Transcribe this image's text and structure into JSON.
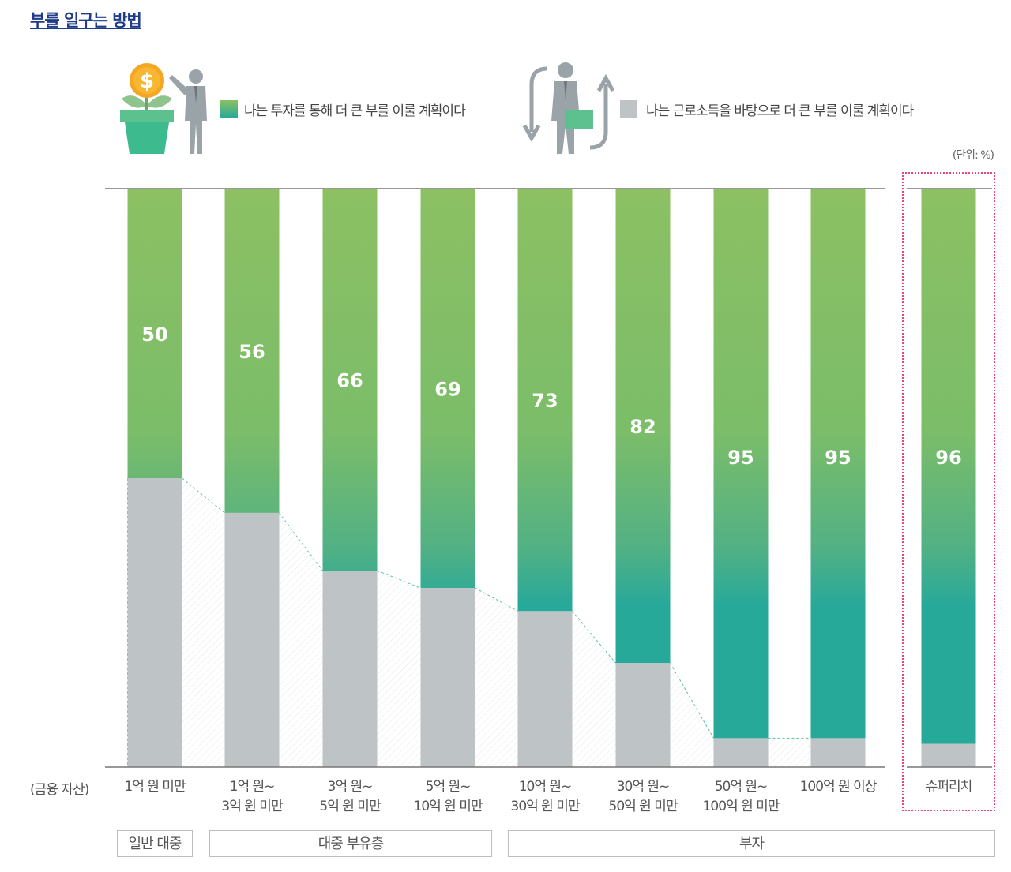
{
  "title": "부를 일구는 방법",
  "unit_label": "(단위: %)",
  "legend": {
    "investment": {
      "label": "나는 투자를 통해 더 큰 부를 이룰 계획이다",
      "icon": "plant-money-icon"
    },
    "labor": {
      "label": "나는 근로소득을 바탕으로 더 큰 부를 이룰 계획이다",
      "icon": "worker-briefcase-icon"
    }
  },
  "axis_caption": "(금융 자산)",
  "groups": [
    {
      "label": "일반 대중"
    },
    {
      "label": "대중 부유층"
    },
    {
      "label": "부자"
    }
  ],
  "colors": {
    "green_top": "#8cc063",
    "teal_bottom": "#27a99a",
    "gray": "#bec3c6",
    "pink": "#e8467c",
    "title": "#1f3c88"
  },
  "chart_data": {
    "type": "bar",
    "stacked": true,
    "title": "부를 일구는 방법",
    "unit": "%",
    "ylim": [
      0,
      100
    ],
    "categories": [
      {
        "line1": "1억 원 미만",
        "line2": ""
      },
      {
        "line1": "1억 원~",
        "line2": "3억 원 미만"
      },
      {
        "line1": "3억 원~",
        "line2": "5억 원 미만"
      },
      {
        "line1": "5억 원~",
        "line2": "10억 원 미만"
      },
      {
        "line1": "10억 원~",
        "line2": "30억 원 미만"
      },
      {
        "line1": "30억 원~",
        "line2": "50억 원 미만"
      },
      {
        "line1": "50억 원~",
        "line2": "100억 원 미만"
      },
      {
        "line1": "100억 원 이상",
        "line2": ""
      },
      {
        "line1": "슈퍼리치",
        "line2": ""
      }
    ],
    "series": [
      {
        "name": "나는 투자를 통해 더 큰 부를 이룰 계획이다",
        "values": [
          50,
          56,
          66,
          69,
          73,
          82,
          95,
          95,
          96
        ]
      },
      {
        "name": "나는 근로소득을 바탕으로 더 큰 부를 이룰 계획이다",
        "values": [
          50,
          44,
          34,
          31,
          27,
          18,
          5,
          5,
          4
        ]
      }
    ]
  }
}
